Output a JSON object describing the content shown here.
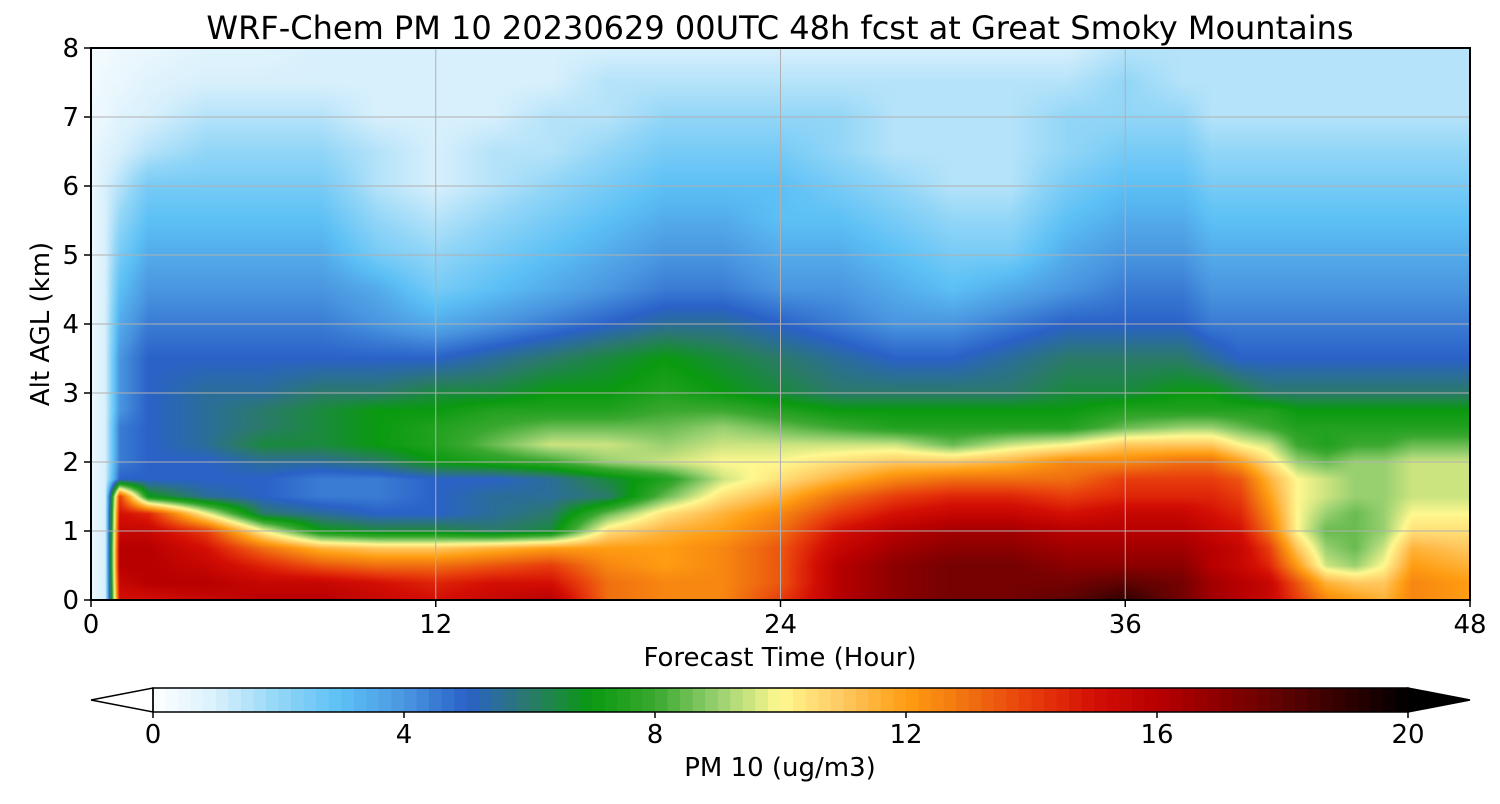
{
  "chart_data": {
    "type": "heatmap",
    "title": "WRF-Chem PM 10  20230629 00UTC 48h fcst at Great Smoky Mountains",
    "xlabel": "Forecast Time (Hour)",
    "ylabel": "Alt AGL (km)",
    "xlim": [
      0,
      48
    ],
    "ylim": [
      0,
      8
    ],
    "xticks": [
      0,
      12,
      24,
      36,
      48
    ],
    "yticks": [
      0,
      1,
      2,
      3,
      4,
      5,
      6,
      7,
      8
    ],
    "grid": true,
    "colorbar": {
      "label": "PM 10  (ug/m3)",
      "range": [
        0,
        20
      ],
      "ticks": [
        0,
        4,
        8,
        12,
        16,
        20
      ],
      "extend": "both",
      "orientation": "horizontal",
      "stops": [
        [
          0,
          "#ffffff"
        ],
        [
          1,
          "#d8f0fc"
        ],
        [
          2,
          "#92d6f7"
        ],
        [
          3,
          "#5cc0f5"
        ],
        [
          4,
          "#4a96e0"
        ],
        [
          5,
          "#2a62c8"
        ],
        [
          6,
          "#2a7a6a"
        ],
        [
          7,
          "#0a9a10"
        ],
        [
          8,
          "#3aa830"
        ],
        [
          9,
          "#98d070"
        ],
        [
          10,
          "#fff890"
        ],
        [
          11,
          "#ffc860"
        ],
        [
          12,
          "#ff9d12"
        ],
        [
          13,
          "#f07010"
        ],
        [
          14,
          "#e83c0c"
        ],
        [
          15,
          "#d40f04"
        ],
        [
          16,
          "#b80000"
        ],
        [
          17,
          "#8c0000"
        ],
        [
          18,
          "#5e0202"
        ],
        [
          19,
          "#300000"
        ],
        [
          20,
          "#000000"
        ]
      ]
    },
    "x": [
      0,
      0.5,
      1,
      2,
      4,
      6,
      8,
      10,
      12,
      14,
      16,
      18,
      20,
      22,
      24,
      26,
      28,
      30,
      32,
      34,
      36,
      38,
      39,
      40,
      41,
      42,
      43,
      44,
      45,
      46,
      48
    ],
    "y": [
      0,
      0.25,
      0.5,
      0.75,
      1,
      1.25,
      1.5,
      1.75,
      2,
      2.25,
      2.5,
      2.75,
      3,
      3.5,
      4,
      4.5,
      5,
      5.5,
      6,
      6.5,
      7,
      7.5,
      8
    ],
    "z": [
      [
        0.5,
        1,
        15,
        15,
        15.5,
        16,
        16,
        15.5,
        15,
        15.5,
        16,
        13,
        12.5,
        12.5,
        14,
        16,
        17,
        17.5,
        17.5,
        18,
        19,
        17.5,
        16.5,
        16,
        15.5,
        14,
        12.5,
        12,
        11.5,
        12.5,
        12
      ],
      [
        0.5,
        1,
        15.5,
        16,
        16,
        15.5,
        15.5,
        15,
        14.5,
        15,
        15,
        13,
        12.5,
        12.5,
        13.5,
        16,
        17,
        17.5,
        17.5,
        17.5,
        18,
        17.5,
        16.5,
        16,
        15.5,
        13.5,
        11.5,
        11,
        11,
        12.5,
        12
      ],
      [
        0.5,
        1,
        16,
        16,
        15.5,
        14.5,
        13.5,
        13,
        13,
        13.5,
        14,
        12.5,
        12,
        12.5,
        13.5,
        16,
        17,
        17.5,
        17.5,
        17,
        17,
        17,
        16,
        15.5,
        14.5,
        12,
        9.5,
        9,
        10,
        12,
        11.5
      ],
      [
        0.5,
        1,
        16,
        16,
        15,
        13,
        11.5,
        11,
        11,
        11.5,
        12,
        12,
        12,
        12.5,
        13.5,
        15.5,
        16.5,
        17,
        17,
        16.5,
        16.5,
        16.5,
        16,
        15.5,
        14,
        11,
        9,
        8.5,
        9.5,
        11.5,
        11
      ],
      [
        0.5,
        1,
        15.5,
        15.5,
        14,
        10,
        7,
        6.5,
        6.5,
        6,
        6.5,
        10.5,
        11.5,
        12,
        13,
        15,
        16,
        16.5,
        16.5,
        16,
        16,
        16,
        15.5,
        15,
        13,
        10,
        8.5,
        8.5,
        9,
        10.5,
        10.5
      ],
      [
        0.5,
        1,
        15,
        14.5,
        10,
        6,
        5.5,
        5,
        5,
        5.5,
        6,
        8.5,
        10.5,
        11.5,
        12.5,
        14,
        15,
        15.5,
        15.5,
        15,
        15.5,
        15.5,
        15,
        14.5,
        12.5,
        10,
        9,
        8.5,
        9,
        10,
        10
      ],
      [
        0.5,
        1,
        14,
        7,
        5.5,
        5,
        4.5,
        4.5,
        5,
        5.5,
        5.5,
        6,
        8.5,
        10.5,
        11.5,
        13,
        14,
        14.5,
        14.5,
        14,
        14.5,
        14.5,
        14.5,
        14,
        12,
        10,
        9.5,
        9,
        9,
        9.5,
        9.5
      ],
      [
        0.5,
        1,
        5,
        5,
        5,
        5,
        4.5,
        4.5,
        5,
        5,
        5.5,
        6.5,
        7.5,
        9.5,
        10.5,
        11.5,
        12.5,
        13,
        13,
        13,
        14,
        14,
        14,
        13.5,
        11.5,
        10,
        9.5,
        9,
        9,
        9.5,
        9.5
      ],
      [
        0.5,
        1,
        4.5,
        5,
        5,
        5.5,
        5.5,
        6,
        7,
        7.5,
        8,
        9,
        9.5,
        10,
        10,
        10.5,
        11,
        11,
        11.5,
        12.5,
        12.5,
        13,
        13,
        12,
        10.5,
        9,
        8.5,
        9,
        9,
        9.5,
        9.5
      ],
      [
        0.5,
        1,
        4.5,
        5,
        5.5,
        6.5,
        6.5,
        7,
        7.5,
        8.5,
        9.5,
        9.5,
        9,
        9.5,
        9.5,
        9.5,
        9.5,
        8.5,
        9.5,
        10,
        11,
        11,
        11,
        10,
        9.5,
        8,
        7.5,
        8,
        8,
        8.5,
        8.5
      ],
      [
        0.5,
        1,
        4.5,
        5,
        5.5,
        6,
        6.5,
        7,
        7.5,
        8,
        8.5,
        8.5,
        8.5,
        9,
        8.5,
        8,
        7.5,
        7.5,
        7.5,
        7.5,
        8.5,
        9,
        9,
        8.5,
        8,
        7.5,
        7.5,
        7.5,
        7.5,
        7.5,
        7.5
      ],
      [
        0.5,
        1,
        4,
        5,
        5.5,
        6,
        6.5,
        7,
        7,
        7.5,
        7.5,
        7.5,
        8,
        8,
        7.5,
        7,
        7,
        7,
        7,
        7,
        7.5,
        7.5,
        7.5,
        7.5,
        7.5,
        7,
        7,
        7,
        7,
        7,
        7
      ],
      [
        0.5,
        1,
        4,
        5,
        5.5,
        5.5,
        6,
        6,
        6.5,
        6.5,
        7,
        7,
        7.5,
        7,
        6.5,
        6,
        6,
        6,
        6,
        6.5,
        6.5,
        7,
        7,
        6.5,
        6,
        6,
        6,
        6,
        6,
        6,
        6
      ],
      [
        0.5,
        1,
        4,
        5,
        5,
        5,
        5,
        5,
        5,
        5.5,
        6,
        6.5,
        7,
        6.5,
        6,
        5.5,
        5,
        5,
        5.5,
        6,
        6,
        6,
        5.5,
        5,
        5,
        5,
        5,
        5,
        5,
        5,
        5
      ],
      [
        0.5,
        1,
        3.5,
        4.5,
        4.5,
        4.5,
        4.5,
        4,
        3.5,
        4,
        4.5,
        5,
        5.5,
        5.5,
        5,
        4.5,
        4,
        4,
        4.5,
        5,
        5,
        5,
        4.5,
        4.5,
        4.5,
        4.5,
        4.5,
        4.5,
        4.5,
        4.5,
        4.5
      ],
      [
        0.5,
        1,
        3,
        4,
        4,
        4,
        4,
        3.5,
        2.5,
        3,
        3.5,
        4,
        4.5,
        4.5,
        4,
        4,
        3.5,
        3,
        3.5,
        4,
        4.5,
        4.5,
        4,
        4,
        4,
        4,
        4,
        4,
        4,
        4,
        4
      ],
      [
        0.5,
        1,
        2.5,
        3.5,
        3.5,
        3.5,
        3.5,
        2.5,
        2,
        2.5,
        3,
        3.5,
        4,
        4,
        3.5,
        3.5,
        3,
        2.5,
        2.5,
        3.5,
        4,
        4,
        3.5,
        3.5,
        3.5,
        3.5,
        3.5,
        3.5,
        3.5,
        3.5,
        3.5
      ],
      [
        0.5,
        1,
        2,
        3,
        3,
        3,
        3,
        2,
        1.5,
        2,
        2.5,
        3,
        3.5,
        3.5,
        3,
        3,
        2.5,
        2,
        2,
        3,
        3.5,
        3.5,
        3,
        3,
        3,
        3,
        3,
        3,
        3,
        3,
        3
      ],
      [
        0.5,
        1,
        1.5,
        2.5,
        2.5,
        2.5,
        2.5,
        1.5,
        1,
        1.5,
        2,
        2.5,
        3,
        3,
        3,
        2.5,
        2,
        1.5,
        1.5,
        2.5,
        3,
        3,
        2.5,
        2.5,
        2.5,
        2.5,
        2.5,
        2.5,
        2.5,
        2.5,
        2.5
      ],
      [
        0.5,
        0.8,
        1,
        1.5,
        2,
        2,
        2,
        1.5,
        1,
        1.5,
        1.5,
        2,
        2.5,
        2.5,
        2.5,
        2,
        1.5,
        1.5,
        1.5,
        2,
        2.5,
        2.5,
        2,
        2,
        2,
        2,
        2,
        2,
        2,
        2,
        2
      ],
      [
        0.5,
        0.5,
        0.8,
        1,
        1.5,
        1.5,
        1.5,
        1,
        1,
        1,
        1.5,
        1.5,
        2,
        2,
        2,
        2,
        1.5,
        1.5,
        1.5,
        2,
        2,
        2,
        1.5,
        1.5,
        1.5,
        1.5,
        1.5,
        1.5,
        1.5,
        1.5,
        1.5
      ],
      [
        0.3,
        0.5,
        0.5,
        0.8,
        1,
        1,
        1,
        1,
        1,
        1,
        1,
        1.5,
        1.5,
        1.5,
        1.5,
        1.5,
        1.5,
        1.5,
        1.5,
        1.5,
        2,
        1.5,
        1.5,
        1.5,
        1.5,
        1.5,
        1.5,
        1.5,
        1.5,
        1.5,
        1.5
      ],
      [
        0.3,
        0.3,
        0.5,
        0.5,
        0.8,
        0.8,
        1,
        1,
        1,
        1,
        1,
        1,
        1,
        1,
        1,
        1,
        1,
        1,
        1,
        1,
        1.5,
        1.5,
        1.5,
        1.5,
        1.5,
        1.5,
        1.5,
        1.5,
        1.5,
        1.5,
        1.5
      ]
    ]
  }
}
